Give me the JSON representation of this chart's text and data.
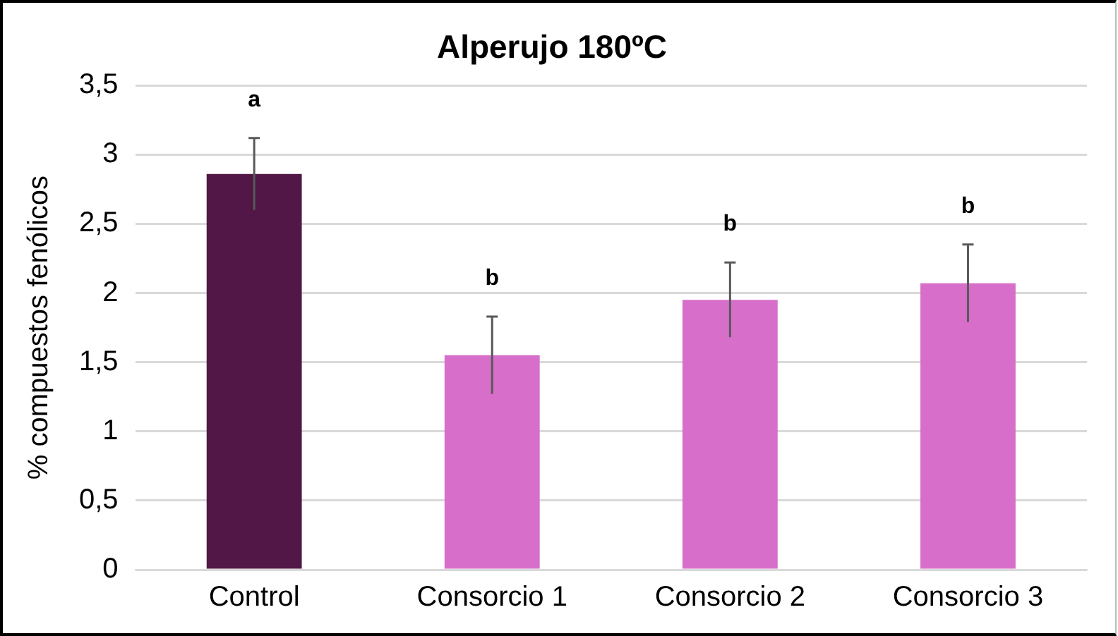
{
  "chart_data": {
    "type": "bar",
    "title": "Alperujo 180ºC",
    "ylabel": "% compuestos fenólicos",
    "categories": [
      "Control",
      "Consorcio 1",
      "Consorcio 2",
      "Consorcio 3"
    ],
    "values": [
      2.86,
      1.55,
      1.95,
      2.07
    ],
    "colors": [
      "#521746",
      "#d76fca",
      "#d76fca",
      "#d76fca"
    ],
    "errors": [
      0.26,
      0.28,
      0.27,
      0.28
    ],
    "ylim": [
      0,
      3.5
    ],
    "yticks": [
      0,
      {
        "value": 0.5,
        "label": "0,5"
      },
      1,
      {
        "value": 1.5,
        "label": "1,5"
      },
      2,
      {
        "value": 2.5,
        "label": "2,5"
      },
      3,
      {
        "value": 3.5,
        "label": "3,5"
      }
    ],
    "grid": "y",
    "legend": false,
    "annotations": [
      "a",
      "b",
      "b",
      "b"
    ]
  }
}
